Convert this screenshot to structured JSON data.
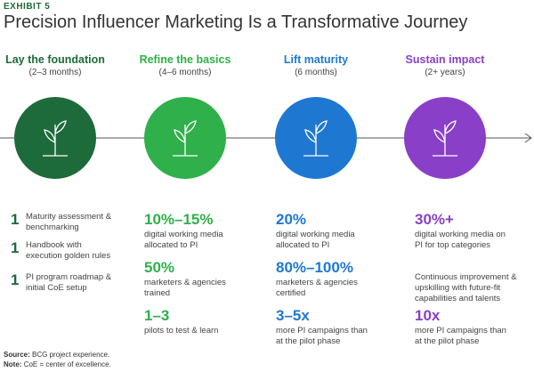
{
  "header": {
    "label": "EXHIBIT 5",
    "title": "Precision Influencer Marketing Is a Transformative Journey"
  },
  "stages": [
    {
      "title": "Lay the foundation",
      "duration": "(2–3 months)",
      "color": "#1d6b3a",
      "items": [
        {
          "figure": "1",
          "text": "Maturity assessment & benchmarking"
        },
        {
          "figure": "1",
          "text": "Handbook with execution golden rules"
        },
        {
          "figure": "1",
          "text": "PI program roadmap & initial CoE setup"
        }
      ]
    },
    {
      "title": "Refine the basics",
      "duration": "(4–6 months)",
      "color": "#2fb04a",
      "items": [
        {
          "figure": "10%–15%",
          "text": "digital working media allocated to PI"
        },
        {
          "figure": "50%",
          "text": "marketers & agencies trained"
        },
        {
          "figure": "1–3",
          "text": "pilots to test & learn"
        }
      ]
    },
    {
      "title": "Lift maturity",
      "duration": "(6 months)",
      "color": "#1e78d2",
      "items": [
        {
          "figure": "20%",
          "text": "digital working media allocated to PI"
        },
        {
          "figure": "80%–100%",
          "text": "marketers & agencies certified"
        },
        {
          "figure": "3–5x",
          "text": "more PI campaigns than at the pilot phase"
        }
      ]
    },
    {
      "title": "Sustain impact",
      "duration": "(2+ years)",
      "color": "#8a3fc8",
      "items": [
        {
          "figure": "30%+",
          "text": "digital working media on PI for top categories"
        },
        {
          "figure": "",
          "text": "Continuous improvement & upskilling with future-fit capabilities and talents"
        },
        {
          "figure": "10x",
          "text": "more PI campaigns than at the pilot phase"
        }
      ]
    }
  ],
  "footer": {
    "source_label": "Source:",
    "source_text": "BCG project experience.",
    "note_label": "Note:",
    "note_text": "CoE = center of excellence."
  }
}
